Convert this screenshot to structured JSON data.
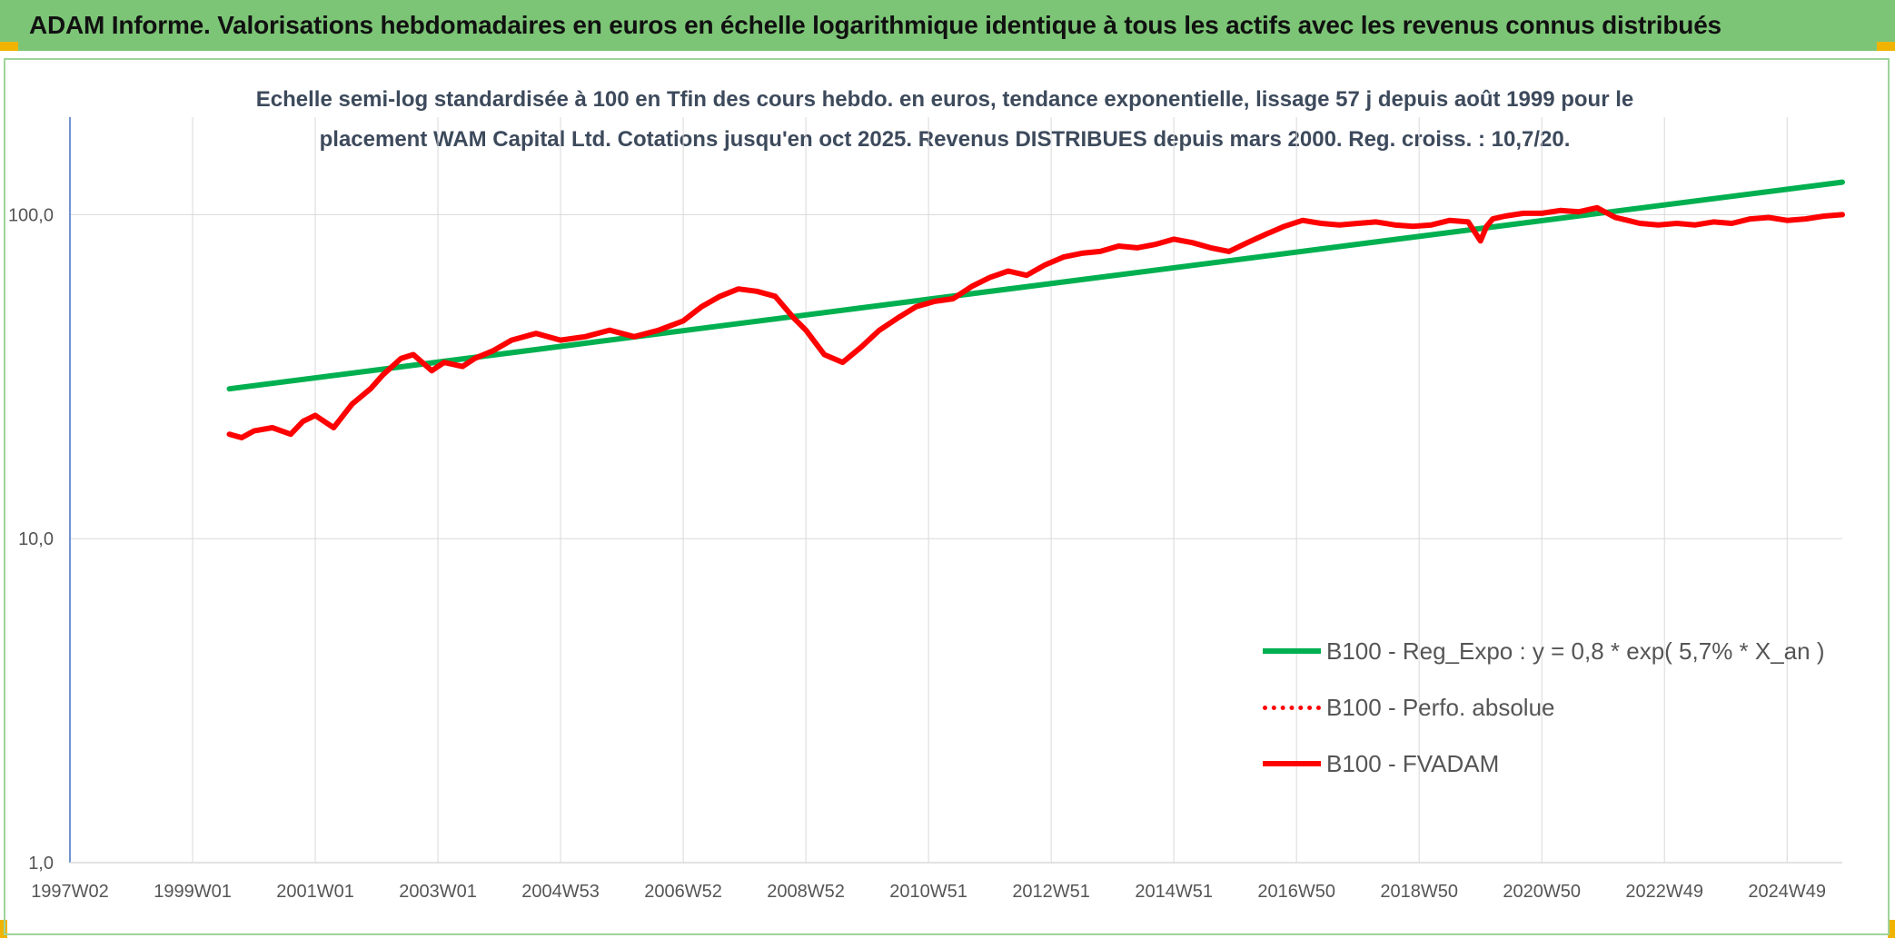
{
  "header": {
    "title": "ADAM Informe. Valorisations hebdomadaires en euros en échelle logarithmique identique à tous les actifs avec les revenus connus distribués"
  },
  "colors": {
    "banner": "#7cc576",
    "trend": "#00b050",
    "series": "#ff0000",
    "axis": "#4472c4",
    "grid": "#d9d9d9"
  },
  "chart_data": {
    "type": "line",
    "title": "Echelle semi-log standardisée à 100 en Tfin des cours hebdo. en euros, tendance exponentielle, lissage 57 j depuis août 1999 pour le placement WAM Capital Ltd. Cotations jusqu'en oct 2025. Revenus DISTRIBUES depuis mars 2000. Reg. croiss. : 10,7/20.",
    "title_lines": [
      "Echelle semi-log standardisée à 100 en Tfin des cours hebdo. en euros, tendance exponentielle, lissage 57 j depuis août 1999 pour le",
      "placement WAM Capital Ltd. Cotations jusqu'en oct 2025. Revenus DISTRIBUES depuis mars 2000. Reg. croiss. : 10,7/20."
    ],
    "y_scale": "log",
    "ylim": [
      1,
      200
    ],
    "y_ticks": [
      {
        "value": 1,
        "label": "1,0"
      },
      {
        "value": 10,
        "label": "10,0"
      },
      {
        "value": 100,
        "label": "100,0"
      }
    ],
    "xlim": [
      1997.0,
      2025.9
    ],
    "x_ticks": [
      {
        "value": 1997.0,
        "label": "1997W02"
      },
      {
        "value": 1999.0,
        "label": "1999W01"
      },
      {
        "value": 2001.0,
        "label": "2001W01"
      },
      {
        "value": 2003.0,
        "label": "2003W01"
      },
      {
        "value": 2005.0,
        "label": "2004W53"
      },
      {
        "value": 2007.0,
        "label": "2006W52"
      },
      {
        "value": 2009.0,
        "label": "2008W52"
      },
      {
        "value": 2011.0,
        "label": "2010W51"
      },
      {
        "value": 2013.0,
        "label": "2012W51"
      },
      {
        "value": 2015.0,
        "label": "2014W51"
      },
      {
        "value": 2017.0,
        "label": "2016W50"
      },
      {
        "value": 2019.0,
        "label": "2018W50"
      },
      {
        "value": 2021.0,
        "label": "2020W50"
      },
      {
        "value": 2023.0,
        "label": "2022W49"
      },
      {
        "value": 2025.0,
        "label": "2024W49"
      }
    ],
    "grid": true,
    "legend_position": "bottom-right",
    "series": [
      {
        "name": "B100 - Reg_Expo : y = 0,8 * exp( 5,7% *  X_an )",
        "style": "solid",
        "color": "#00b050",
        "x": [
          1999.6,
          2025.9
        ],
        "y": [
          29,
          126
        ]
      },
      {
        "name": "B100 - Perfo. absolue",
        "style": "dotted",
        "color": "#ff0000",
        "x": [],
        "y": []
      },
      {
        "name": "B100 - FVADAM",
        "style": "solid",
        "color": "#ff0000",
        "x": [
          1999.6,
          1999.8,
          2000.0,
          2000.3,
          2000.6,
          2000.8,
          2001.0,
          2001.3,
          2001.6,
          2001.9,
          2002.1,
          2002.4,
          2002.6,
          2002.9,
          2003.1,
          2003.4,
          2003.6,
          2003.9,
          2004.2,
          2004.6,
          2005.0,
          2005.4,
          2005.8,
          2006.2,
          2006.6,
          2007.0,
          2007.3,
          2007.6,
          2007.9,
          2008.2,
          2008.5,
          2008.8,
          2009.0,
          2009.3,
          2009.6,
          2009.9,
          2010.2,
          2010.5,
          2010.8,
          2011.1,
          2011.4,
          2011.7,
          2012.0,
          2012.3,
          2012.6,
          2012.9,
          2013.2,
          2013.5,
          2013.8,
          2014.1,
          2014.4,
          2014.7,
          2015.0,
          2015.3,
          2015.6,
          2015.9,
          2016.2,
          2016.5,
          2016.8,
          2017.1,
          2017.4,
          2017.7,
          2018.0,
          2018.3,
          2018.6,
          2018.9,
          2019.2,
          2019.5,
          2019.8,
          2020.0,
          2020.1,
          2020.2,
          2020.4,
          2020.7,
          2021.0,
          2021.3,
          2021.6,
          2021.9,
          2022.2,
          2022.4,
          2022.6,
          2022.9,
          2023.2,
          2023.5,
          2023.8,
          2024.1,
          2024.4,
          2024.7,
          2025.0,
          2025.3,
          2025.6,
          2025.9
        ],
        "y": [
          21,
          20.5,
          21.5,
          22,
          21,
          23,
          24,
          22,
          26,
          29,
          32,
          36,
          37,
          33,
          35,
          34,
          36,
          38,
          41,
          43,
          41,
          42,
          44,
          42,
          44,
          47,
          52,
          56,
          59,
          58,
          56,
          48,
          44,
          37,
          35,
          39,
          44,
          48,
          52,
          54,
          55,
          60,
          64,
          67,
          65,
          70,
          74,
          76,
          77,
          80,
          79,
          81,
          84,
          82,
          79,
          77,
          82,
          87,
          92,
          96,
          94,
          93,
          94,
          95,
          93,
          92,
          93,
          96,
          95,
          83,
          92,
          97,
          99,
          101,
          101,
          103,
          102,
          105,
          98,
          96,
          94,
          93,
          94,
          93,
          95,
          94,
          97,
          98,
          96,
          97,
          99,
          100
        ]
      }
    ]
  }
}
